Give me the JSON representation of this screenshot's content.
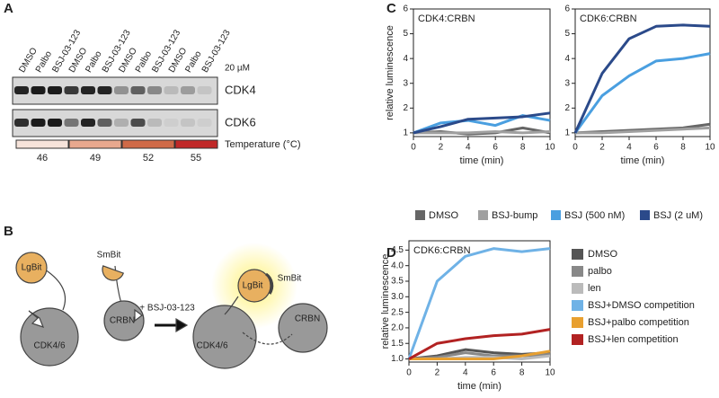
{
  "panel_labels": [
    "A",
    "B",
    "C",
    "D"
  ],
  "blot": {
    "lanes": [
      "DMSO",
      "Palbo",
      "BSJ-03-123",
      "DMSO",
      "Palbo",
      "BSJ-03-123",
      "DMSO",
      "Palbo",
      "BSJ-03-123",
      "DMSO",
      "Palbo",
      "BSJ-03-123"
    ],
    "concentration": "20 µM",
    "rows": [
      "CDK4",
      "CDK6"
    ],
    "temperatures": [
      "46",
      "49",
      "52",
      "55"
    ],
    "temperature_label": "Temperature (°C)"
  },
  "diagram": {
    "left": [
      "LgBit",
      "SmBit",
      "CRBN",
      "CDK4/6"
    ],
    "arrow_label": "+ BSJ-03-123",
    "right": [
      "LgBit",
      "SmBit",
      "CDK4/6",
      "CRBN"
    ]
  },
  "chart_data": [
    {
      "type": "line",
      "title": "CDK4:CRBN",
      "xlabel": "time (min)",
      "ylabel": "relative luminescence",
      "x": [
        0,
        2,
        4,
        6,
        8,
        10
      ],
      "xlim": [
        0,
        10
      ],
      "xticks": [
        0,
        2,
        4,
        6,
        8,
        10
      ],
      "ylim": [
        0.85,
        6
      ],
      "yticks": [
        1,
        2,
        3,
        4,
        5,
        6
      ],
      "series": [
        {
          "name": "DMSO",
          "color": "#666666",
          "values": [
            1,
            1.05,
            0.95,
            1.0,
            1.2,
            1.0
          ]
        },
        {
          "name": "BSJ-bump",
          "color": "#a0a0a0",
          "values": [
            1,
            1.0,
            1.0,
            1.05,
            1.0,
            1.05
          ]
        },
        {
          "name": "BSJ (500 nM)",
          "color": "#4a9fe0",
          "values": [
            1,
            1.4,
            1.5,
            1.3,
            1.7,
            1.5
          ]
        },
        {
          "name": "BSJ (2 uM)",
          "color": "#2b4a8a",
          "values": [
            1,
            1.25,
            1.55,
            1.6,
            1.65,
            1.8
          ]
        }
      ]
    },
    {
      "type": "line",
      "title": "CDK6:CRBN",
      "xlabel": "time (min)",
      "x": [
        0,
        2,
        4,
        6,
        8,
        10
      ],
      "xlim": [
        0,
        10
      ],
      "xticks": [
        0,
        2,
        4,
        6,
        8,
        10
      ],
      "ylim": [
        0.85,
        6
      ],
      "yticks": [
        1,
        2,
        3,
        4,
        5,
        6
      ],
      "series": [
        {
          "color": "#666666",
          "values": [
            1,
            1.05,
            1.1,
            1.15,
            1.2,
            1.35
          ]
        },
        {
          "color": "#a0a0a0",
          "values": [
            1,
            1.0,
            1.05,
            1.1,
            1.15,
            1.2
          ]
        },
        {
          "color": "#4a9fe0",
          "values": [
            1,
            2.5,
            3.3,
            3.9,
            4.0,
            4.2
          ]
        },
        {
          "color": "#2b4a8a",
          "values": [
            1,
            3.4,
            4.8,
            5.3,
            5.35,
            5.3
          ]
        }
      ]
    },
    {
      "type": "line",
      "title": "CDK6:CRBN",
      "xlabel": "time (min)",
      "ylabel": "relative luminescence",
      "x": [
        0,
        2,
        4,
        6,
        8,
        10
      ],
      "xlim": [
        0,
        10
      ],
      "xticks": [
        0,
        2,
        4,
        6,
        8,
        10
      ],
      "ylim": [
        0.9,
        4.8
      ],
      "yticks": [
        {
          "value": 1,
          "label": "1.0"
        },
        1.5,
        {
          "value": 2,
          "label": "2.0"
        },
        2.5,
        {
          "value": 3,
          "label": "3.0"
        },
        3.5,
        {
          "value": 4,
          "label": "4.0"
        },
        4.5
      ],
      "series": [
        {
          "name": "DMSO",
          "color": "#555555",
          "values": [
            1,
            1.1,
            1.3,
            1.2,
            1.15,
            1.2
          ]
        },
        {
          "name": "palbo",
          "color": "#888888",
          "values": [
            1,
            1.05,
            1.2,
            1.1,
            1.1,
            1.15
          ]
        },
        {
          "name": "len",
          "color": "#bbbbbb",
          "values": [
            1,
            1.0,
            1.05,
            1.05,
            1.0,
            1.1
          ]
        },
        {
          "name": "BSJ+DMSO competition",
          "color": "#6fb2e6",
          "values": [
            1,
            3.5,
            4.3,
            4.55,
            4.45,
            4.55
          ]
        },
        {
          "name": "BSJ+palbo competition",
          "color": "#e8a030",
          "values": [
            1,
            1.0,
            1.0,
            1.0,
            1.1,
            1.25
          ]
        },
        {
          "name": "BSJ+len competition",
          "color": "#b22222",
          "values": [
            1,
            1.5,
            1.65,
            1.75,
            1.8,
            1.95
          ]
        }
      ]
    }
  ]
}
